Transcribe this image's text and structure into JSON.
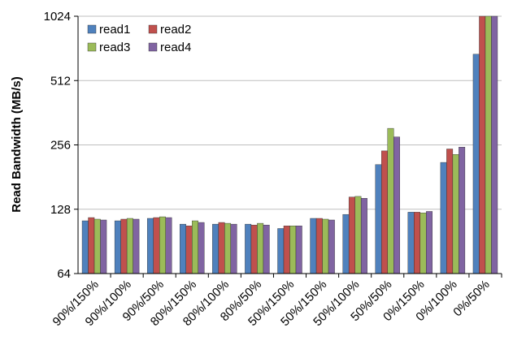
{
  "chart_data": {
    "type": "bar",
    "ylabel": "Read Bandwidth (MB/s)",
    "y_scale": "log2",
    "ylim": [
      64,
      1024
    ],
    "yticks": [
      "64",
      "128",
      "256",
      "512",
      "1024"
    ],
    "ytick_values": [
      64,
      128,
      256,
      512,
      1024
    ],
    "grid": "horizontal",
    "legend_position": "top-left",
    "categories": [
      "90%/150%",
      "90%/100%",
      "90%/50%",
      "80%/150%",
      "80%/100%",
      "80%/50%",
      "50%/150%",
      "50%/150%",
      "50%/100%",
      "50%/50%",
      "0%/150%",
      "0%/100%",
      "0%/50%"
    ],
    "series": [
      {
        "name": "read1",
        "color": "#4f81bd",
        "values": [
          113,
          113,
          116,
          109,
          109,
          109,
          104,
          116,
          121,
          207,
          124,
          212,
          680
        ]
      },
      {
        "name": "read2",
        "color": "#c0504d",
        "values": [
          117,
          115,
          117,
          107,
          111,
          108,
          107,
          116,
          146,
          240,
          124,
          245,
          1024
        ]
      },
      {
        "name": "read3",
        "color": "#9bbb59",
        "values": [
          115,
          116,
          118,
          113,
          110,
          110,
          107,
          115,
          147,
          306,
          123,
          231,
          1024
        ]
      },
      {
        "name": "read4",
        "color": "#8064a2",
        "values": [
          114,
          115,
          117,
          111,
          109,
          108,
          107,
          114,
          144,
          279,
          125,
          250,
          1024
        ]
      }
    ]
  }
}
